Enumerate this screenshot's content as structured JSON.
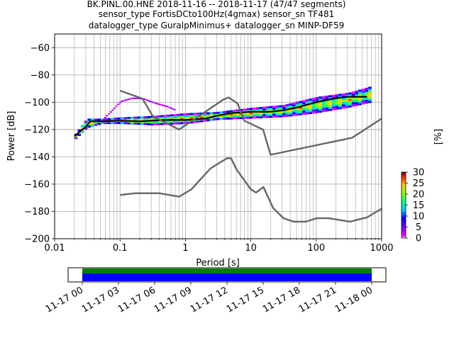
{
  "header": {
    "line1": "BK.PINL.00.HNE   2018-11-16 -- 2018-11-17  (47/47 segments)",
    "line2": "sensor_type FortisDCto100Hz(4gmax) sensor_sn TF481",
    "line3": "datalogger_type GuralpMinimus+ datalogger_sn MINP-DF59"
  },
  "chart_data": [
    {
      "type": "heatmap",
      "title": "",
      "xlabel": "Period [s]",
      "ylabel": "Power [dB]",
      "xscale": "log",
      "xlim": [
        0.01,
        1000
      ],
      "ylim": [
        -200,
        -50
      ],
      "x_ticks": [
        0.01,
        0.1,
        1,
        10,
        100,
        1000
      ],
      "x_tick_labels": [
        "0.01",
        "0.1",
        "1",
        "10",
        "100",
        "1000"
      ],
      "y_ticks": [
        -200,
        -180,
        -160,
        -140,
        -120,
        -100,
        -80,
        -60
      ],
      "y_tick_labels": [
        "−200",
        "−180",
        "−160",
        "−140",
        "−120",
        "−100",
        "−80",
        "−60"
      ],
      "grid": true,
      "colorbar": {
        "label": "[%]",
        "range": [
          0,
          30
        ],
        "ticks": [
          0,
          5,
          10,
          15,
          20,
          25,
          30
        ],
        "tick_labels": [
          "0",
          "5",
          "10",
          "15",
          "20",
          "25",
          "30"
        ]
      },
      "series": [
        {
          "role": "mean",
          "color": "#000000",
          "x": [
            0.02,
            0.025,
            0.03,
            0.035,
            0.05,
            0.1,
            0.2,
            0.5,
            1,
            2,
            3,
            5,
            7,
            10,
            20,
            30,
            50,
            70,
            100,
            200,
            300,
            600
          ],
          "y": [
            -125,
            -121,
            -118,
            -114,
            -114,
            -113.5,
            -114,
            -113,
            -113,
            -112,
            -110,
            -108,
            -107.5,
            -107,
            -107,
            -106,
            -104,
            -102,
            -100,
            -97,
            -96,
            -96
          ]
        },
        {
          "role": "nhnm",
          "color": "#666666",
          "x": [
            0.1,
            0.22,
            0.32,
            0.8,
            3.8,
            4.6,
            6.3,
            7.9,
            15.4,
            20,
            354.8,
            1000
          ],
          "y": [
            -91.5,
            -97.4,
            -110.5,
            -120,
            -98,
            -96.5,
            -101,
            -113.5,
            -120,
            -138.5,
            -126,
            -112
          ]
        },
        {
          "role": "nlnm",
          "color": "#666666",
          "x": [
            0.1,
            0.17,
            0.4,
            0.8,
            1.24,
            2.4,
            4.3,
            5,
            6,
            10,
            12,
            15.6,
            21.9,
            31.6,
            45,
            70,
            101,
            154,
            328,
            600,
            1000
          ],
          "y": [
            -168,
            -166.7,
            -166.7,
            -169.2,
            -163.7,
            -148.6,
            -141.1,
            -141.1,
            -149,
            -163.8,
            -166.2,
            -162.1,
            -177.5,
            -185,
            -187.5,
            -187.5,
            -185,
            -185,
            -187.5,
            -184.4,
            -178
          ]
        }
      ],
      "density_band": {
        "x": [
          0.02,
          0.03,
          0.05,
          0.1,
          0.3,
          1,
          3,
          10,
          30,
          100,
          300,
          700
        ],
        "y_low": [
          -127,
          -119,
          -116,
          -116,
          -117,
          -116,
          -113,
          -112,
          -111,
          -108,
          -104,
          -100
        ],
        "y_high": [
          -123,
          -112,
          -112,
          -111,
          -110,
          -108,
          -107,
          -104,
          -102,
          -96,
          -93,
          -88
        ]
      },
      "outlier_arc": {
        "x": [
          0.05,
          0.07,
          0.1,
          0.15,
          0.22,
          0.35,
          0.5,
          0.7
        ],
        "y": [
          -114,
          -107,
          -99.5,
          -97,
          -97.5,
          -101,
          -103,
          -106
        ]
      }
    },
    {
      "type": "timeline",
      "categories": [
        "11-17 00",
        "11-17 03",
        "11-17 06",
        "11-17 09",
        "11-17 12",
        "11-17 15",
        "11-17 18",
        "11-17 21",
        "11-18 00"
      ],
      "series": [
        {
          "color": "#008000",
          "start": "11-17 00",
          "end": "11-18 00"
        },
        {
          "color": "#0000ff",
          "start": "11-17 00",
          "end": "11-18 00"
        }
      ]
    }
  ]
}
